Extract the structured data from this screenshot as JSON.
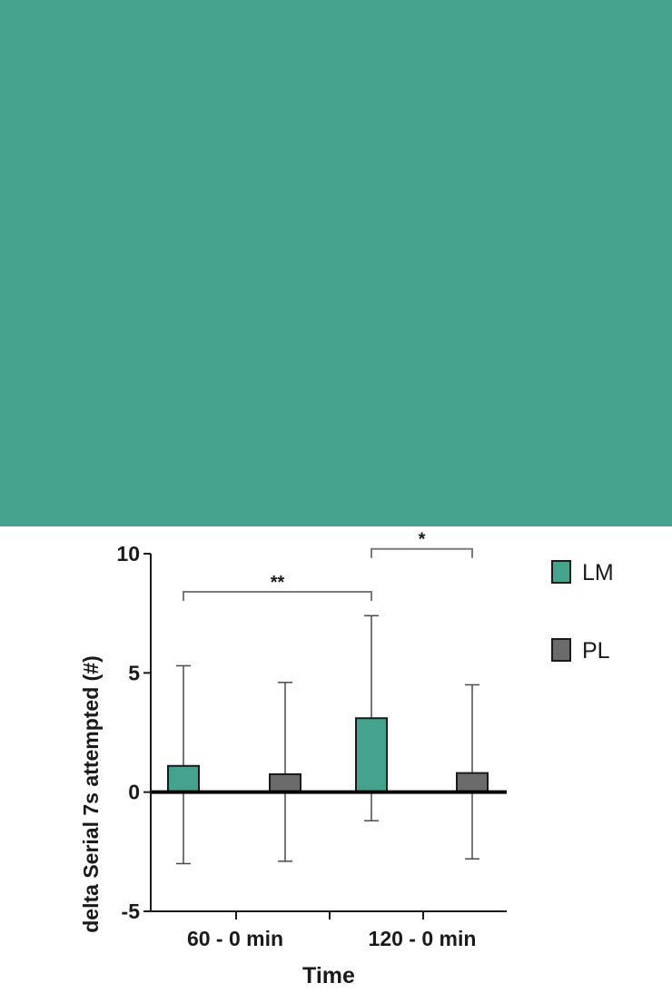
{
  "colors": {
    "band": "#45a28d",
    "lm": "#45a28d",
    "pl": "#6b6b6b",
    "axis": "#1a1a1a",
    "error": "#4a4a4a",
    "bracket": "#7a7a7a"
  },
  "chart_data": {
    "type": "bar",
    "xlabel": "Time",
    "ylabel": "delta Serial 7s attempted (#)",
    "ylim": [
      -5,
      10
    ],
    "yticks": [
      -5,
      0,
      5,
      10
    ],
    "categories": [
      "60 - 0 min",
      "120 - 0 min"
    ],
    "series": [
      {
        "name": "LM",
        "color": "#45a28d",
        "values": [
          1.1,
          3.1
        ],
        "err_upper": [
          5.3,
          7.4
        ],
        "err_lower": [
          -3.0,
          -1.2
        ]
      },
      {
        "name": "PL",
        "color": "#6b6b6b",
        "values": [
          0.75,
          0.8
        ],
        "err_upper": [
          4.6,
          4.5
        ],
        "err_lower": [
          -2.9,
          -2.8
        ]
      }
    ],
    "annotations": [
      {
        "label": "**",
        "from": {
          "category": 0,
          "series": 0
        },
        "to": {
          "category": 1,
          "series": 0
        },
        "y": 8.4
      },
      {
        "label": "*",
        "from": {
          "category": 1,
          "series": 0
        },
        "to": {
          "category": 1,
          "series": 1
        },
        "y": 10.2
      }
    ],
    "legend": {
      "placement": "right"
    },
    "grid": false
  }
}
